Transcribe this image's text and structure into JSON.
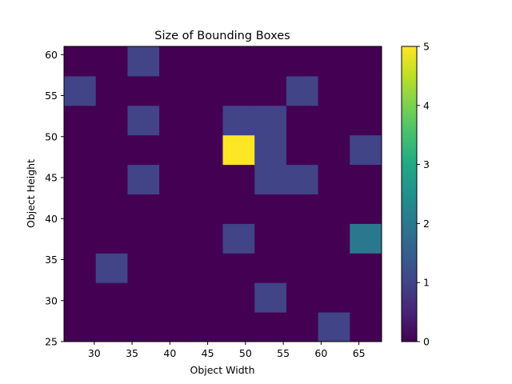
{
  "chart_data": {
    "type": "heatmap",
    "title": "Size of Bounding Boxes",
    "xlabel": "Object Width",
    "ylabel": "Object Height",
    "x_edges": [
      26.0,
      30.2,
      34.4,
      38.6,
      42.8,
      47.0,
      51.2,
      55.4,
      59.6,
      63.8,
      68.0
    ],
    "y_edges": [
      25.0,
      28.6,
      32.2,
      35.8,
      39.4,
      43.0,
      46.6,
      50.2,
      53.8,
      57.4,
      61.0
    ],
    "xlim": [
      26,
      68
    ],
    "ylim": [
      25,
      61
    ],
    "x_ticks": [
      30,
      35,
      40,
      45,
      50,
      55,
      60,
      65
    ],
    "y_ticks": [
      25,
      30,
      35,
      40,
      45,
      50,
      55,
      60
    ],
    "counts": [
      [
        0,
        0,
        0,
        0,
        0,
        0,
        0,
        0,
        1,
        0
      ],
      [
        0,
        0,
        0,
        0,
        0,
        0,
        1,
        0,
        0,
        0
      ],
      [
        0,
        1,
        0,
        0,
        0,
        0,
        0,
        0,
        0,
        0
      ],
      [
        0,
        0,
        0,
        0,
        0,
        1,
        0,
        0,
        0,
        2
      ],
      [
        0,
        0,
        0,
        0,
        0,
        0,
        0,
        0,
        0,
        0
      ],
      [
        0,
        0,
        1,
        0,
        0,
        0,
        1,
        1,
        0,
        0
      ],
      [
        0,
        0,
        0,
        0,
        0,
        5,
        1,
        0,
        0,
        1
      ],
      [
        0,
        0,
        1,
        0,
        0,
        1,
        1,
        0,
        0,
        0
      ],
      [
        1,
        0,
        0,
        0,
        0,
        0,
        0,
        1,
        0,
        0
      ],
      [
        0,
        0,
        1,
        0,
        0,
        0,
        0,
        0,
        0,
        0
      ]
    ],
    "colormap": "viridis",
    "colorbar": {
      "min": 0,
      "max": 5,
      "ticks": [
        0,
        1,
        2,
        3,
        4,
        5
      ]
    },
    "grid": false
  }
}
